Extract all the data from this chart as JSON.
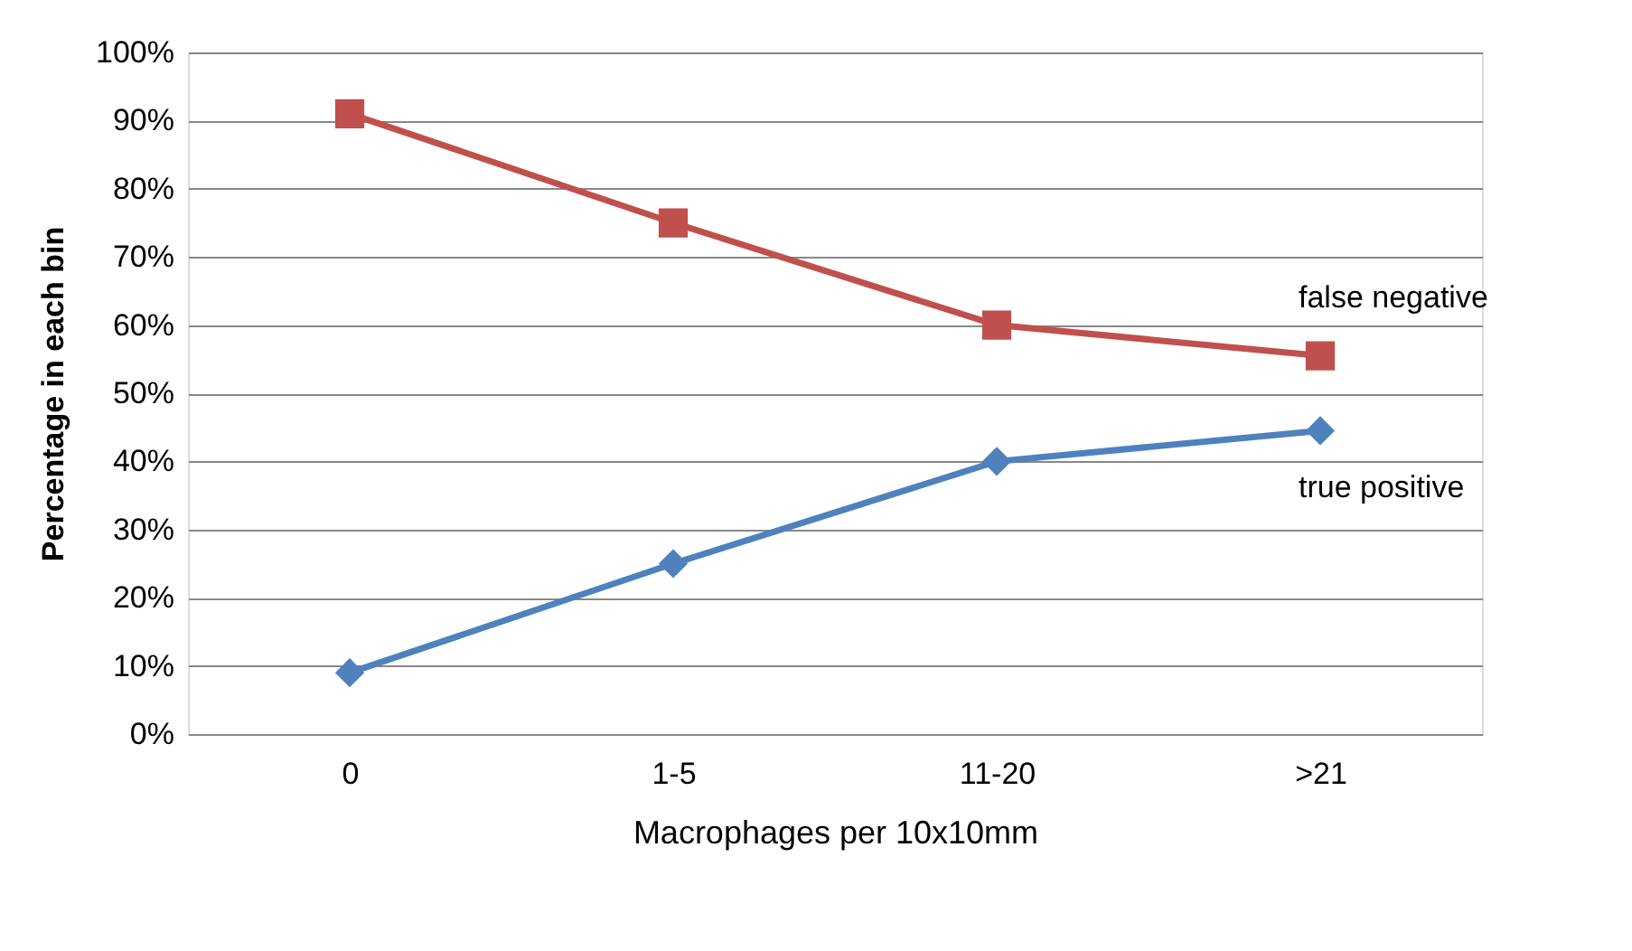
{
  "chart_data": {
    "type": "line",
    "xlabel": "Macrophages per 10x10mm",
    "ylabel": "Percentage in each bin",
    "categories": [
      "0",
      "1-5",
      "11-20",
      ">21"
    ],
    "series": [
      {
        "name": "false negative",
        "color": "#c0504d",
        "marker": "square",
        "values": [
          91,
          75,
          60,
          55.5
        ]
      },
      {
        "name": "true positive",
        "color": "#4f81bd",
        "marker": "diamond",
        "values": [
          9,
          25,
          40,
          44.5
        ]
      }
    ],
    "ylim": [
      0,
      100
    ],
    "yticks": [
      {
        "value": 0,
        "label": "0%"
      },
      {
        "value": 10,
        "label": "10%"
      },
      {
        "value": 20,
        "label": "20%"
      },
      {
        "value": 30,
        "label": "30%"
      },
      {
        "value": 40,
        "label": "40%"
      },
      {
        "value": 50,
        "label": "50%"
      },
      {
        "value": 60,
        "label": "60%"
      },
      {
        "value": 70,
        "label": "70%"
      },
      {
        "value": 80,
        "label": "80%"
      },
      {
        "value": 90,
        "label": "90%"
      },
      {
        "value": 100,
        "label": "100%"
      }
    ],
    "grid": "y",
    "legend": false,
    "line_style": "solid"
  }
}
